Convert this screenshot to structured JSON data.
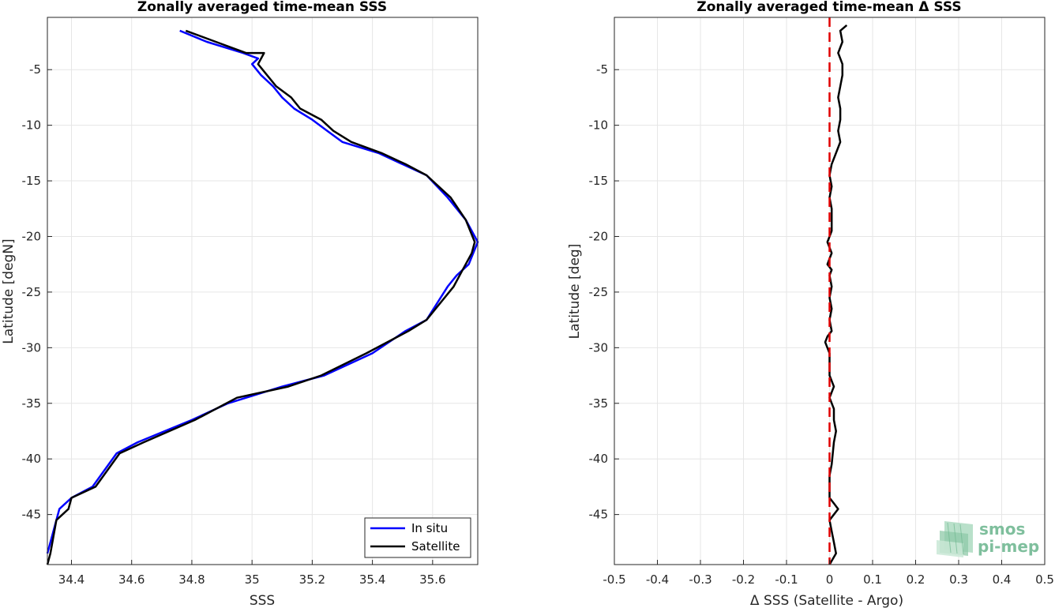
{
  "chart_data": [
    {
      "type": "line",
      "title": "Zonally averaged time-mean SSS",
      "xlabel": "SSS",
      "ylabel": "Latitude [degN]",
      "xlim": [
        34.32,
        35.75
      ],
      "ylim": [
        -49.5,
        -0.3
      ],
      "xticks": [
        34.4,
        34.6,
        34.8,
        35,
        35.2,
        35.4,
        35.6
      ],
      "xtick_labels": [
        "34.4",
        "34.6",
        "34.8",
        "35",
        "35.2",
        "35.4",
        "35.6"
      ],
      "yticks": [
        -5,
        -10,
        -15,
        -20,
        -25,
        -30,
        -35,
        -40,
        -45
      ],
      "ytick_labels": [
        "-5",
        "-10",
        "-15",
        "-20",
        "-25",
        "-30",
        "-35",
        "-40",
        "-45"
      ],
      "grid": true,
      "legend": "bottom-right",
      "series": [
        {
          "name": "In situ",
          "color": "#0000ff",
          "x": [
            34.76,
            34.85,
            34.97,
            35.02,
            35.0,
            35.03,
            35.07,
            35.1,
            35.14,
            35.2,
            35.25,
            35.3,
            35.42,
            35.5,
            35.58,
            35.65,
            35.71,
            35.75,
            35.72,
            35.68,
            35.65,
            35.58,
            35.51,
            35.4,
            35.24,
            35.1,
            34.92,
            34.8,
            34.62,
            34.55,
            34.47,
            34.4,
            34.36,
            34.35,
            34.32
          ],
          "y": [
            -1.5,
            -2.5,
            -3.5,
            -4.0,
            -4.5,
            -5.5,
            -6.5,
            -7.5,
            -8.5,
            -9.5,
            -10.5,
            -11.5,
            -12.5,
            -13.5,
            -14.5,
            -16.5,
            -18.5,
            -20.5,
            -22.5,
            -23.5,
            -24.5,
            -27.5,
            -28.5,
            -30.5,
            -32.5,
            -33.5,
            -35.0,
            -36.5,
            -38.5,
            -39.5,
            -42.5,
            -43.5,
            -44.5,
            -45.5,
            -48.5
          ]
        },
        {
          "name": "Satellite",
          "color": "#000000",
          "x": [
            34.78,
            34.88,
            34.98,
            35.04,
            35.02,
            35.05,
            35.08,
            35.13,
            35.16,
            35.23,
            35.27,
            35.33,
            35.43,
            35.51,
            35.58,
            35.66,
            35.71,
            35.74,
            35.73,
            35.7,
            35.67,
            35.58,
            35.52,
            35.38,
            35.23,
            35.12,
            34.95,
            34.81,
            34.64,
            34.56,
            34.48,
            34.4,
            34.39,
            34.35,
            34.33,
            34.32
          ],
          "y": [
            -1.5,
            -2.5,
            -3.5,
            -3.5,
            -4.5,
            -5.5,
            -6.5,
            -7.5,
            -8.5,
            -9.5,
            -10.5,
            -11.5,
            -12.5,
            -13.5,
            -14.5,
            -16.5,
            -18.5,
            -20.5,
            -21.5,
            -23.0,
            -24.5,
            -27.5,
            -28.5,
            -30.5,
            -32.5,
            -33.5,
            -34.5,
            -36.5,
            -38.5,
            -39.5,
            -42.5,
            -43.5,
            -44.5,
            -45.5,
            -48.5,
            -49.5
          ]
        }
      ]
    },
    {
      "type": "line",
      "title": "Zonally averaged time-mean Δ SSS",
      "xlabel": "Δ SSS (Satellite - Argo)",
      "ylabel": "Latitude [deg]",
      "xlim": [
        -0.5,
        0.5
      ],
      "ylim": [
        -49.5,
        -0.3
      ],
      "xticks": [
        -0.5,
        -0.4,
        -0.3,
        -0.2,
        -0.1,
        0,
        0.1,
        0.2,
        0.3,
        0.4,
        0.5
      ],
      "xtick_labels": [
        "-0.5",
        "-0.4",
        "-0.3",
        "-0.2",
        "-0.1",
        "0",
        "0.1",
        "0.2",
        "0.3",
        "0.4",
        "0.5"
      ],
      "yticks": [
        -5,
        -10,
        -15,
        -20,
        -25,
        -30,
        -35,
        -40,
        -45
      ],
      "ytick_labels": [
        "-5",
        "-10",
        "-15",
        "-20",
        "-25",
        "-30",
        "-35",
        "-40",
        "-45"
      ],
      "grid": true,
      "series": [
        {
          "color": "#000000",
          "x": [
            0.04,
            0.025,
            0.03,
            0.02,
            0.025,
            0.03,
            0.03,
            0.025,
            0.02,
            0.025,
            0.025,
            0.02,
            0.025,
            0.015,
            0.005,
            0.0,
            0.005,
            0.0,
            0.005,
            0.005,
            0.005,
            0.0,
            -0.005,
            0.005,
            -0.005,
            0.005,
            0.0,
            0.005,
            0.0,
            0.005,
            0.0,
            0.005,
            -0.005,
            -0.01,
            0.0,
            0.0,
            0.01,
            0.0,
            0.01,
            0.01,
            0.015,
            0.01,
            0.005,
            0.0,
            0.0,
            0.0,
            0.01,
            0.02,
            0.0,
            0.005,
            0.01,
            0.015,
            0.0
          ],
          "y": [
            -1.0,
            -1.5,
            -2.5,
            -3.5,
            -4.0,
            -4.5,
            -5.5,
            -6.5,
            -7.5,
            -8.5,
            -9.5,
            -10.5,
            -11.5,
            -12.5,
            -13.5,
            -14.5,
            -15.5,
            -16.5,
            -17.5,
            -18.5,
            -19.5,
            -20.0,
            -20.5,
            -21.5,
            -22.5,
            -23.0,
            -23.5,
            -24.5,
            -25.5,
            -26.5,
            -27.5,
            -28.5,
            -29.0,
            -29.5,
            -30.5,
            -32.5,
            -33.5,
            -34.5,
            -35.5,
            -36.5,
            -37.5,
            -38.5,
            -40.5,
            -41.5,
            -42.5,
            -43.5,
            -44.0,
            -44.5,
            -45.5,
            -46.5,
            -47.5,
            -48.5,
            -49.5
          ]
        },
        {
          "color": "#e00000",
          "dashed": true,
          "x": [
            0,
            0
          ],
          "y": [
            -0.3,
            -49.5
          ]
        }
      ]
    }
  ],
  "logo": {
    "line1": "smos",
    "line2": "pi-mep"
  }
}
